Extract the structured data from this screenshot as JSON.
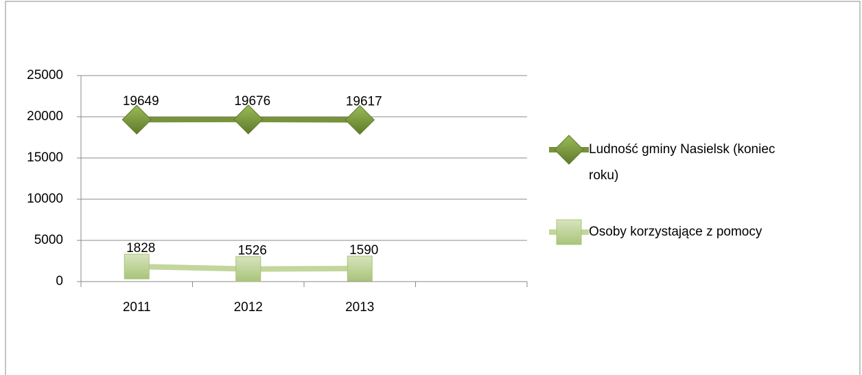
{
  "chart_data": {
    "type": "line",
    "categories": [
      "2011",
      "2012",
      "2013",
      null
    ],
    "series": [
      {
        "name": "Ludność gminy Nasielsk (koniec roku)",
        "color": "#77933c",
        "marker": "diamond",
        "values": [
          19649,
          19676,
          19617,
          null
        ]
      },
      {
        "name": "Osoby korzystające z pomocy",
        "color": "#c3d69b",
        "marker": "square",
        "values": [
          1828,
          1526,
          1590,
          null
        ]
      }
    ],
    "ylim": [
      0,
      25000
    ],
    "yticks": [
      0,
      5000,
      10000,
      15000,
      20000,
      25000
    ],
    "grid": true,
    "legend": "right"
  }
}
